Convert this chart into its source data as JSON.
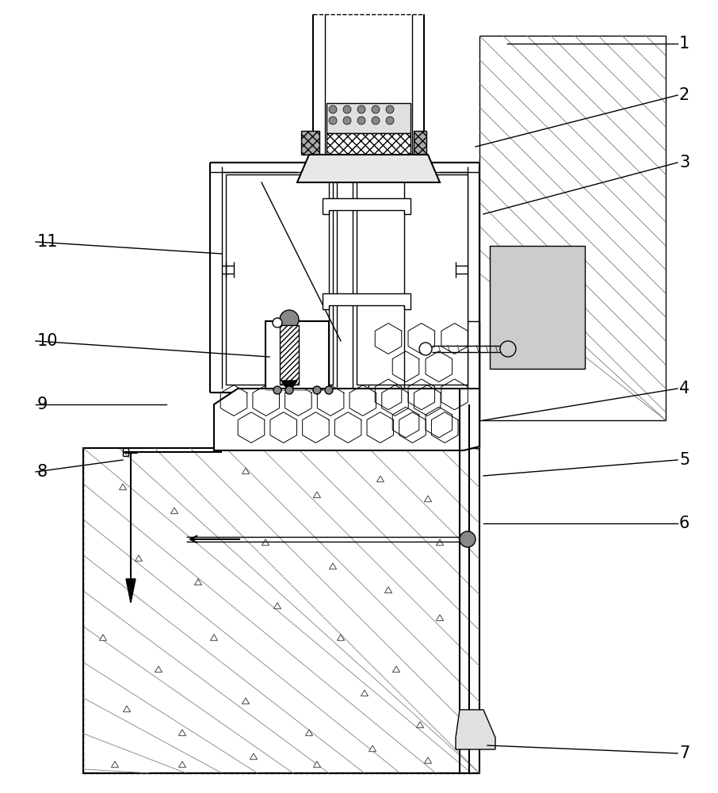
{
  "bg_color": "#ffffff",
  "line_color": "#000000",
  "leaders": [
    [
      "1",
      855,
      55,
      640,
      55
    ],
    [
      "2",
      855,
      120,
      600,
      185
    ],
    [
      "3",
      855,
      205,
      610,
      270
    ],
    [
      "4",
      855,
      490,
      610,
      530
    ],
    [
      "5",
      855,
      580,
      610,
      600
    ],
    [
      "6",
      855,
      660,
      610,
      660
    ],
    [
      "7",
      855,
      950,
      615,
      940
    ],
    [
      "8",
      45,
      595,
      155,
      580
    ],
    [
      "9",
      45,
      510,
      210,
      510
    ],
    [
      "10",
      45,
      430,
      340,
      450
    ],
    [
      "11",
      45,
      305,
      280,
      320
    ]
  ]
}
